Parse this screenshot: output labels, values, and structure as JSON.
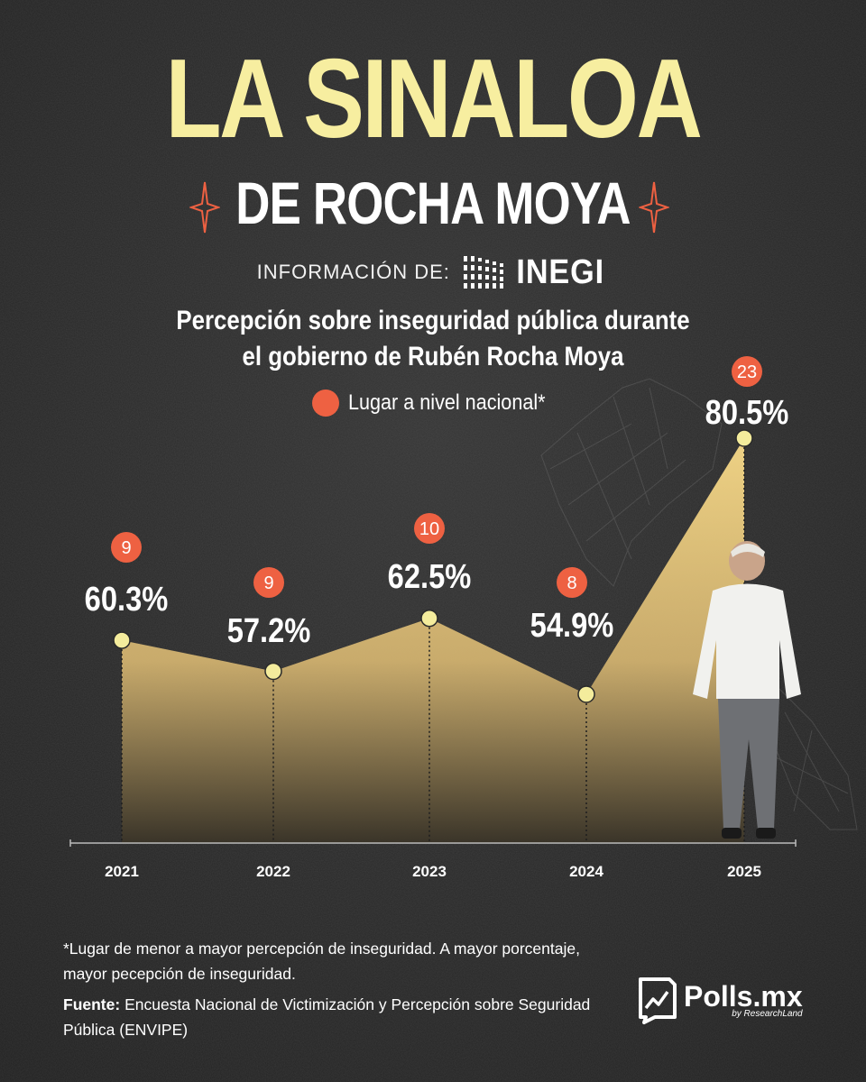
{
  "header": {
    "title": "LA SINALOA",
    "subtitle": "DE ROCHA MOYA",
    "info_label": "INFORMACIÓN DE:",
    "source_logo_text": "INEGI"
  },
  "chart_title": "Percepción sobre inseguridad pública durante el gobierno de Rubén Rocha Moya",
  "chart_title_lines": [
    "Percepción sobre inseguridad pública durante",
    "el gobierno de Rubén Rocha Moya"
  ],
  "legend": {
    "label": "Lugar a nivel nacional*",
    "color": "#ee6142"
  },
  "chart_data": {
    "type": "area",
    "categories": [
      "2021",
      "2022",
      "2023",
      "2024",
      "2025"
    ],
    "series": [
      {
        "values": [
          60.3,
          57.2,
          62.5,
          54.9,
          80.5
        ]
      }
    ],
    "value_labels": [
      "60.3%",
      "57.2%",
      "62.5%",
      "54.9%",
      "80.5%"
    ],
    "rank_badges": [
      9,
      9,
      10,
      8,
      23
    ],
    "unit": "%",
    "colors": {
      "fill_top": "#f2d586",
      "fill_bottom": "#3a3428",
      "point": "#f4ec9c",
      "badge": "#ee6142"
    },
    "grid": false,
    "legend_position": "top"
  },
  "footnote": "*Lugar de menor a mayor percepción de inseguridad. A mayor porcentaje, mayor pecepción de inseguridad.",
  "source": {
    "label": "Fuente:",
    "text": "Encuesta Nacional de Victimización y Percepción sobre Seguridad Pública (ENVIPE)"
  },
  "brand": {
    "name": "Polls.mx",
    "tagline": "by ResearchLand",
    "icon": "chart-document-icon"
  }
}
